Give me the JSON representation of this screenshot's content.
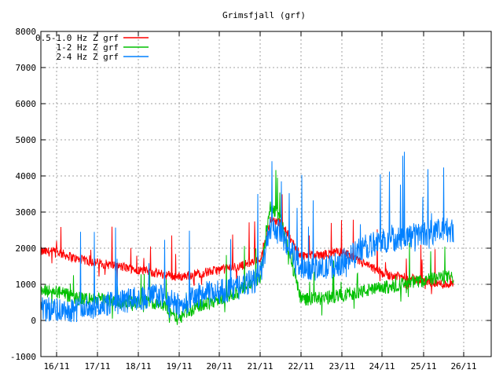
{
  "chart_data": {
    "type": "line",
    "title": "Grimsfjall (grf)",
    "xlabel": "",
    "ylabel": "",
    "ylim": [
      -1000,
      8000
    ],
    "yticks": [
      -1000,
      0,
      1000,
      2000,
      3000,
      4000,
      5000,
      6000,
      7000,
      8000
    ],
    "xlim": [
      "2011-11-15T00:00",
      "2011-11-27T00:00"
    ],
    "x_ticks": [
      "16/11",
      "17/11",
      "18/11",
      "19/11",
      "20/11",
      "21/11",
      "22/11",
      "23/11",
      "24/11",
      "25/11",
      "26/11"
    ],
    "grid": true,
    "legend_position": "top-left",
    "series": [
      {
        "name": "0.5-1.0 Hz Z grf",
        "color": "#ff0000",
        "x": [
          "16/11 00h",
          "16/11 12h",
          "17/11 00h",
          "17/11 12h",
          "18/11 00h",
          "18/11 12h",
          "19/11 00h",
          "19/11 12h",
          "20/11 00h",
          "20/11 12h",
          "21/11 00h",
          "21/11 06h",
          "21/11 12h",
          "22/11 00h",
          "22/11 12h",
          "23/11 00h",
          "23/11 12h",
          "24/11 00h",
          "24/11 12h",
          "25/11 00h",
          "25/11 12h"
        ],
        "values": [
          1900,
          1700,
          1600,
          1500,
          1400,
          1300,
          1200,
          1300,
          1400,
          1500,
          1700,
          2800,
          2700,
          1800,
          1800,
          1900,
          1600,
          1300,
          1200,
          1100,
          1000
        ]
      },
      {
        "name": "1-2 Hz Z grf",
        "color": "#00c000",
        "x": [
          "16/11 00h",
          "16/11 12h",
          "17/11 00h",
          "17/11 12h",
          "18/11 00h",
          "18/11 12h",
          "19/11 00h",
          "19/11 12h",
          "20/11 00h",
          "20/11 12h",
          "21/11 00h",
          "21/11 06h",
          "21/11 12h",
          "22/11 00h",
          "22/11 12h",
          "23/11 00h",
          "23/11 12h",
          "24/11 00h",
          "24/11 12h",
          "25/11 00h",
          "25/11 12h"
        ],
        "values": [
          800,
          600,
          600,
          500,
          500,
          500,
          100,
          400,
          600,
          800,
          1200,
          3200,
          2800,
          600,
          600,
          700,
          800,
          900,
          1000,
          1100,
          1200
        ]
      },
      {
        "name": "2-4 Hz Z grf",
        "color": "#0080ff",
        "x": [
          "16/11 00h",
          "16/11 12h",
          "17/11 00h",
          "17/11 12h",
          "18/11 00h",
          "18/11 12h",
          "19/11 00h",
          "19/11 12h",
          "20/11 00h",
          "20/11 12h",
          "21/11 00h",
          "21/11 06h",
          "21/11 12h",
          "22/11 00h",
          "22/11 12h",
          "23/11 00h",
          "23/11 12h",
          "24/11 00h",
          "24/11 12h",
          "25/11 00h",
          "25/11 12h"
        ],
        "values": [
          300,
          300,
          400,
          500,
          600,
          700,
          400,
          700,
          800,
          900,
          1200,
          2600,
          2400,
          1500,
          1400,
          1600,
          2000,
          2200,
          2300,
          2400,
          2500
        ]
      }
    ]
  }
}
